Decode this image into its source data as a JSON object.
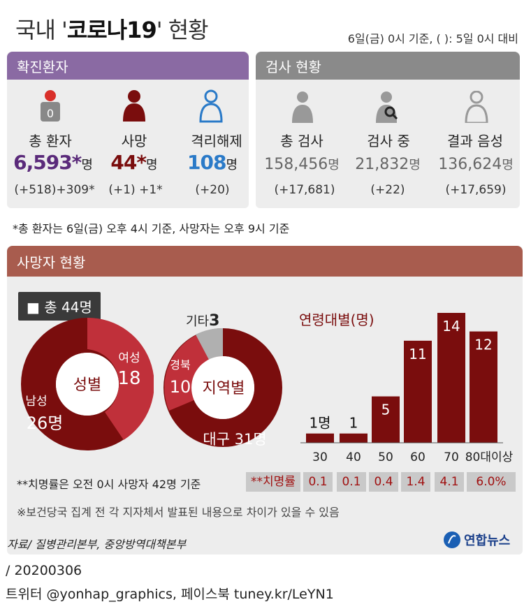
{
  "title": {
    "prefix": "국내 '",
    "bold": "코로나19",
    "suffix": "' 현황"
  },
  "subtitle": "6일(금) 0시 기준, ( ): 5일 0시 대비",
  "confirmed": {
    "header": "확진환자",
    "items": [
      {
        "label": "총 환자",
        "value": "6,593*",
        "unit": "명",
        "change": "(+518)+309*",
        "color": "#5a2a7a"
      },
      {
        "label": "사망",
        "value": "44*",
        "unit": "명",
        "change": "(+1) +1*",
        "color": "#7a0d0d"
      },
      {
        "label": "격리해제",
        "value": "108",
        "unit": "명",
        "change": "(+20)",
        "color": "#2a7ac8"
      }
    ],
    "icon_badge": "0"
  },
  "tests": {
    "header": "검사 현황",
    "items": [
      {
        "label": "총 검사",
        "value": "158,456",
        "unit": "명",
        "change": "(+17,681)"
      },
      {
        "label": "검사 중",
        "value": "21,832",
        "unit": "명",
        "change": "(+22)"
      },
      {
        "label": "결과 음성",
        "value": "136,624",
        "unit": "명",
        "change": "(+17,659)"
      }
    ]
  },
  "footnote1": "*총 환자는 6일(금) 오후 4시 기준, 사망자는 오후 9시 기준",
  "deaths": {
    "header": "사망자 현황",
    "total_label": "총 44명",
    "gender": {
      "center": "성별",
      "female_label": "여성",
      "female_value": "18",
      "male_label": "남성",
      "male_value": "26명",
      "female": 18,
      "male": 26
    },
    "region": {
      "center": "지역별",
      "daegu_label": "대구 31명",
      "gyeongbuk_label": "경북",
      "gyeongbuk_value": "10",
      "other_label": "기타",
      "other_value": "3",
      "daegu": 31,
      "gyeongbuk": 10,
      "other": 3
    },
    "age_title": "연령대별(명)"
  },
  "chart_data": {
    "type": "bar",
    "title": "연령대별(명)",
    "categories": [
      "30",
      "40",
      "50",
      "60",
      "70",
      "80대이상"
    ],
    "values": [
      1,
      1,
      5,
      11,
      14,
      12
    ],
    "value_labels": [
      "1명",
      "1",
      "5",
      "11",
      "14",
      "12"
    ],
    "fatality_label": "**치명률",
    "fatality_rates": [
      "0.1",
      "0.1",
      "0.4",
      "1.4",
      "4.1",
      "6.0%"
    ]
  },
  "footnote2": "**치명률은 오전 0시 사망자 42명 기준",
  "footnote3": "※보건당국 집계 전 각 지자체서 발표된 내용으로 차이가 있을 수 있음",
  "source": "자료/ 질병관리본부, 중앙방역대책본부",
  "brand": "연합뉴스",
  "footer_date": "/ 20200306",
  "footer_social": "트위터 @yonhap_graphics, 페이스북 tuney.kr/LeYN1",
  "colors": {
    "purple": "#8a6aa3",
    "gray": "#8a8a8a",
    "brown": "#a85c4e",
    "dark_red": "#7a0d0d",
    "red": "#c0303a",
    "blue": "#2a7ac8"
  }
}
